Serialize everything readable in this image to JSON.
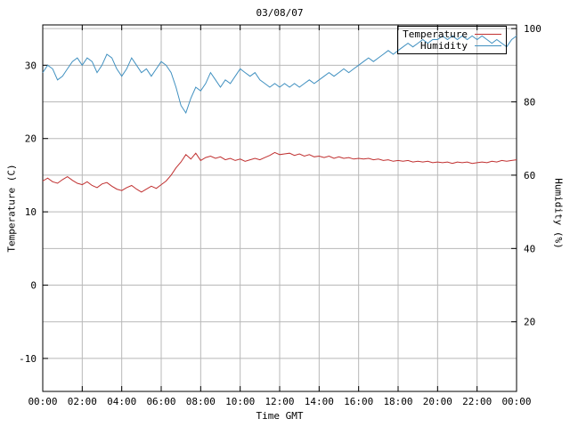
{
  "colors": {
    "background": "#ffffff",
    "frame": "#000000",
    "grid": "#b8b8b8"
  },
  "chart_data": {
    "type": "line",
    "title": "03/08/07",
    "xlabel": "Time GMT",
    "ylabel_left": "Temperature (C)",
    "ylabel_right": "Humidity (%)",
    "grid": true,
    "legend_position": "top-right",
    "x_range_hours": [
      0,
      24
    ],
    "y_left_range": [
      -14.5,
      35.5
    ],
    "y_right_range": [
      1,
      101
    ],
    "x_start_hours": 0,
    "x_step_hours": 0.25,
    "x_tick_hours": [
      0,
      2,
      4,
      6,
      8,
      10,
      12,
      14,
      16,
      18,
      20,
      22,
      24
    ],
    "x_tick_labels": [
      "00:00",
      "02:00",
      "04:00",
      "06:00",
      "08:00",
      "10:00",
      "12:00",
      "14:00",
      "16:00",
      "18:00",
      "20:00",
      "22:00",
      "00:00"
    ],
    "y_left_ticks": [
      -10,
      0,
      10,
      20,
      30
    ],
    "y_right_ticks": [
      20,
      40,
      60,
      80,
      100
    ],
    "series": [
      {
        "name": "Temperature",
        "axis": "left",
        "color": "#c03030",
        "values": [
          14.2,
          14.6,
          14.1,
          13.9,
          14.4,
          14.8,
          14.3,
          13.9,
          13.7,
          14.1,
          13.6,
          13.3,
          13.8,
          14.0,
          13.5,
          13.1,
          12.9,
          13.3,
          13.6,
          13.1,
          12.7,
          13.1,
          13.5,
          13.2,
          13.7,
          14.2,
          15.0,
          16.0,
          16.8,
          17.8,
          17.2,
          18.0,
          17.0,
          17.4,
          17.6,
          17.3,
          17.5,
          17.1,
          17.3,
          17.0,
          17.2,
          16.9,
          17.1,
          17.3,
          17.1,
          17.4,
          17.7,
          18.1,
          17.8,
          17.9,
          18.0,
          17.7,
          17.9,
          17.6,
          17.8,
          17.5,
          17.6,
          17.4,
          17.6,
          17.3,
          17.5,
          17.3,
          17.4,
          17.2,
          17.3,
          17.2,
          17.3,
          17.1,
          17.2,
          17.0,
          17.1,
          16.9,
          17.0,
          16.9,
          17.0,
          16.8,
          16.9,
          16.8,
          16.9,
          16.7,
          16.8,
          16.7,
          16.8,
          16.6,
          16.8,
          16.7,
          16.8,
          16.6,
          16.7,
          16.8,
          16.7,
          16.9,
          16.8,
          17.0,
          16.9,
          17.0,
          17.1
        ]
      },
      {
        "name": "Humidity",
        "axis": "right",
        "color": "#4090c0",
        "values": [
          88,
          90,
          89,
          86,
          87,
          89,
          91,
          92,
          90,
          92,
          91,
          88,
          90,
          93,
          92,
          89,
          87,
          89,
          92,
          90,
          88,
          89,
          87,
          89,
          91,
          90,
          88,
          84,
          79,
          77,
          81,
          84,
          83,
          85,
          88,
          86,
          84,
          86,
          85,
          87,
          89,
          88,
          87,
          88,
          86,
          85,
          84,
          85,
          84,
          85,
          84,
          85,
          84,
          85,
          86,
          85,
          86,
          87,
          88,
          87,
          88,
          89,
          88,
          89,
          90,
          91,
          92,
          91,
          92,
          93,
          94,
          93,
          94,
          95,
          96,
          95,
          96,
          97,
          96,
          97,
          97,
          98,
          97,
          98,
          97,
          98,
          97,
          98,
          97,
          98,
          97,
          96,
          97,
          96,
          95,
          97,
          98
        ]
      }
    ]
  }
}
